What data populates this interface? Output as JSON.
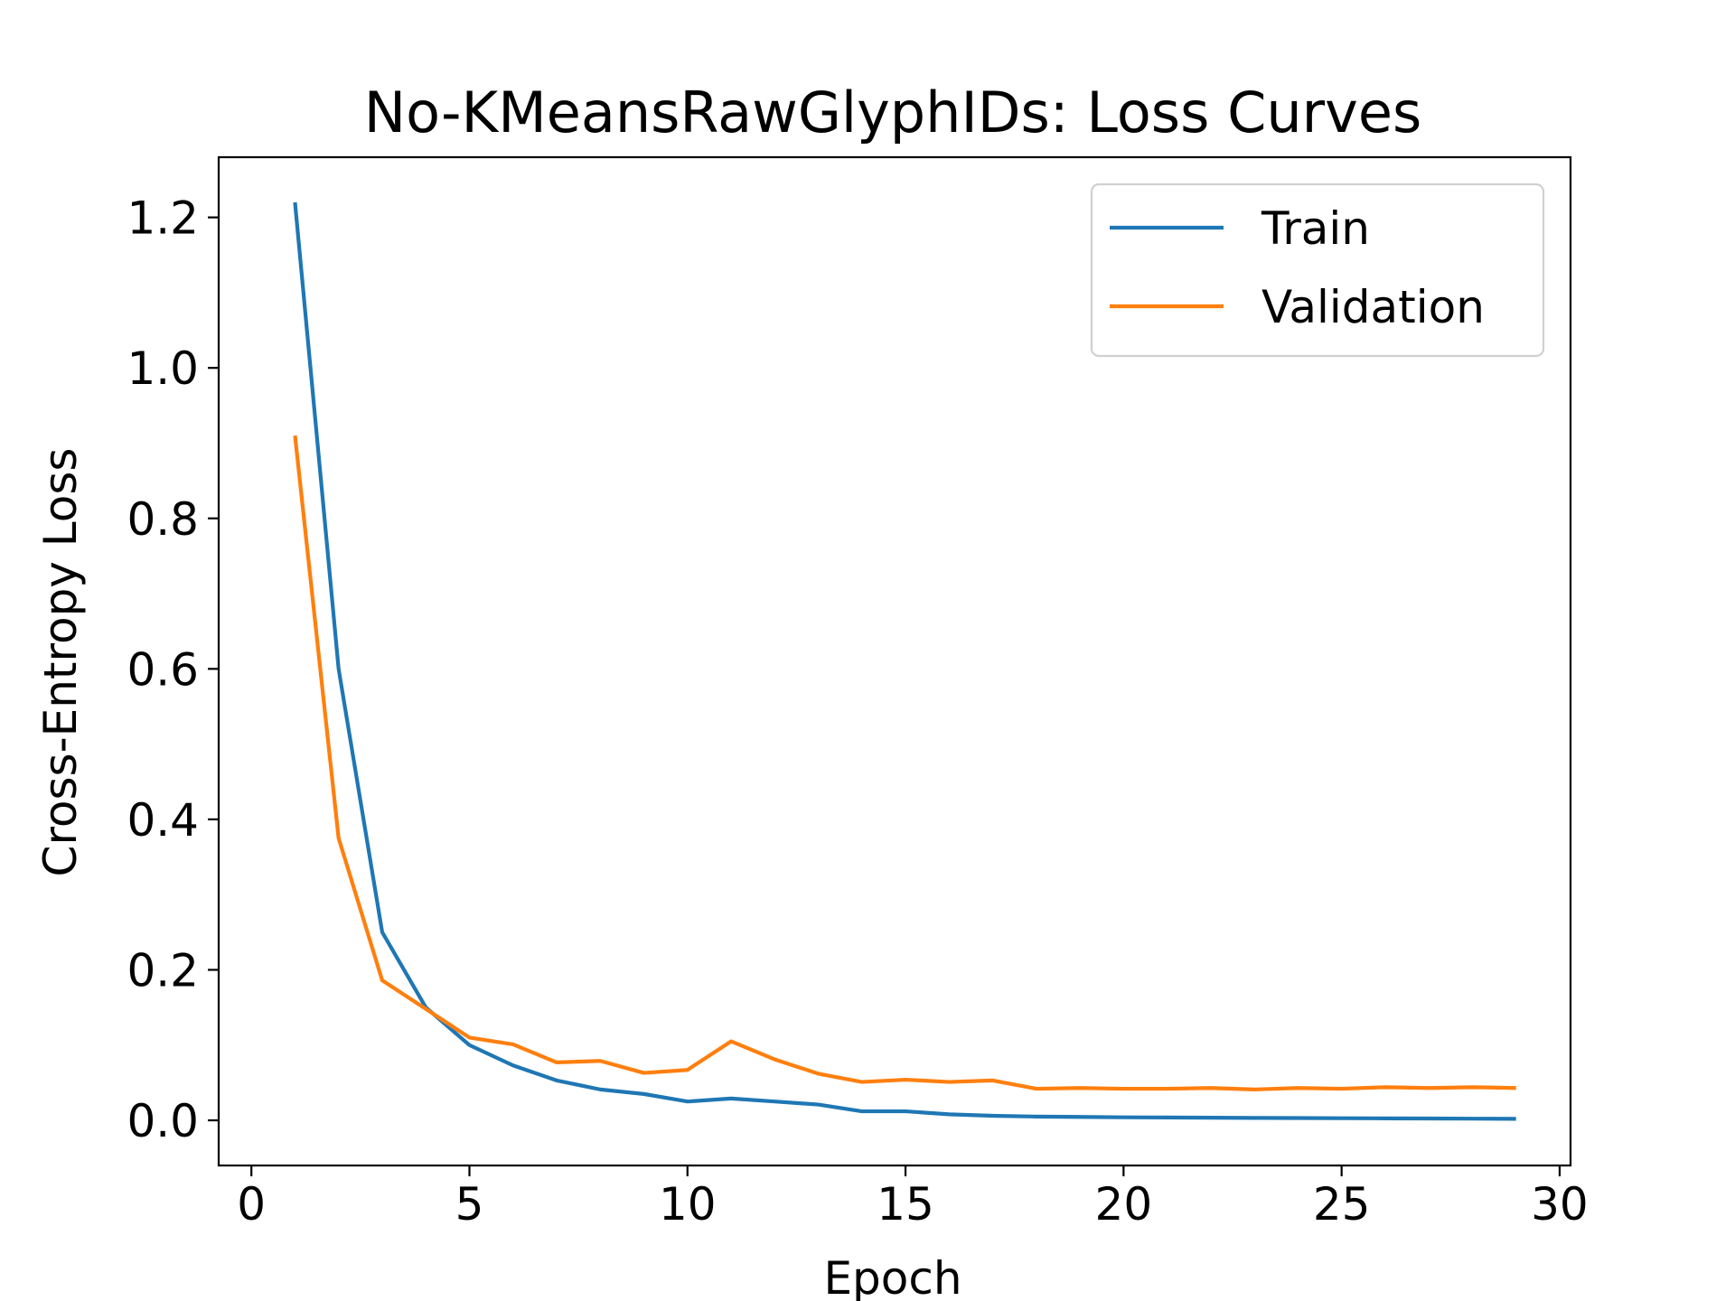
{
  "chart_data": {
    "type": "line",
    "title": "No-KMeansRawGlyphIDs: Loss Curves",
    "xlabel": "Epoch",
    "ylabel": "Cross-Entropy Loss",
    "xlim": [
      -0.75,
      30.25
    ],
    "ylim": [
      -0.06,
      1.28
    ],
    "xticks": [
      0,
      5,
      10,
      15,
      20,
      25,
      30
    ],
    "yticks": [
      0.0,
      0.2,
      0.4,
      0.6,
      0.8,
      1.0,
      1.2
    ],
    "ytick_labels": [
      "0.0",
      "0.2",
      "0.4",
      "0.6",
      "0.8",
      "1.0",
      "1.2"
    ],
    "grid": false,
    "legend_position": "top-right",
    "x": [
      1,
      2,
      3,
      4,
      5,
      6,
      7,
      8,
      9,
      10,
      11,
      12,
      13,
      14,
      15,
      16,
      17,
      18,
      19,
      20,
      21,
      22,
      23,
      24,
      25,
      26,
      27,
      28,
      29
    ],
    "series": [
      {
        "name": "Train",
        "color": "#1f77b4",
        "values": [
          1.22,
          0.6,
          0.25,
          0.15,
          0.1,
          0.073,
          0.053,
          0.041,
          0.035,
          0.025,
          0.029,
          0.025,
          0.021,
          0.012,
          0.012,
          0.008,
          0.006,
          0.005,
          0.0045,
          0.004,
          0.0038,
          0.0035,
          0.0032,
          0.003,
          0.0028,
          0.0026,
          0.0024,
          0.0022,
          0.002
        ]
      },
      {
        "name": "Validation",
        "color": "#ff7f0e",
        "values": [
          0.91,
          0.375,
          0.186,
          0.148,
          0.11,
          0.101,
          0.077,
          0.079,
          0.063,
          0.067,
          0.105,
          0.081,
          0.062,
          0.051,
          0.054,
          0.051,
          0.053,
          0.042,
          0.043,
          0.042,
          0.042,
          0.043,
          0.041,
          0.043,
          0.042,
          0.044,
          0.043,
          0.044,
          0.043
        ]
      }
    ]
  }
}
